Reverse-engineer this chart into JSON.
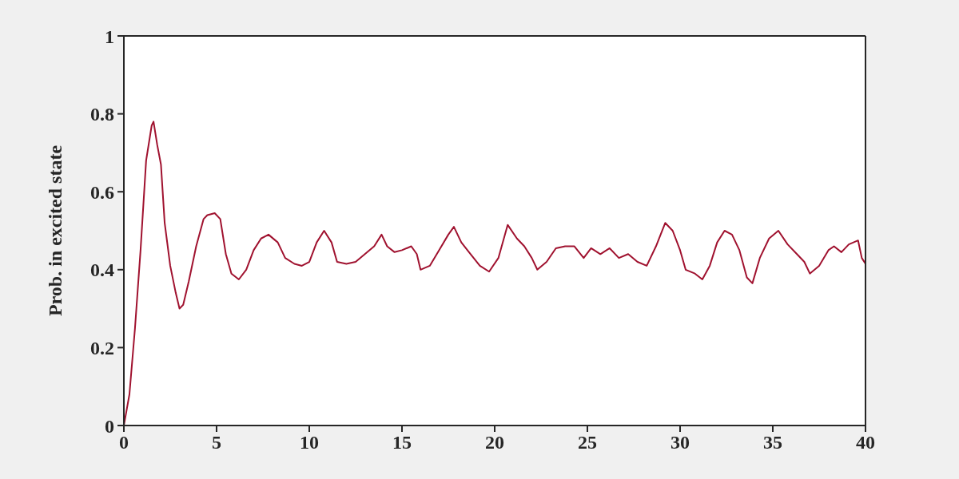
{
  "chart_data": {
    "type": "line",
    "ylabel": "Prob. in excited state",
    "xlim": [
      0,
      40
    ],
    "xticks": [
      0,
      5,
      10,
      15,
      20,
      25,
      30,
      35,
      40
    ],
    "ylim": [
      0,
      1
    ],
    "yticks": [
      0,
      0.2,
      0.4,
      0.6,
      0.8,
      1
    ],
    "grid": false,
    "legend": false,
    "marker": "none",
    "line_style": "solid",
    "series": [
      {
        "color": "#a0122f",
        "x": [
          0,
          0.3,
          0.6,
          0.9,
          1.2,
          1.5,
          1.6,
          1.8,
          2.0,
          2.2,
          2.5,
          2.8,
          3.0,
          3.2,
          3.5,
          3.9,
          4.3,
          4.5,
          4.9,
          5.2,
          5.5,
          5.8,
          6.2,
          6.6,
          7.0,
          7.4,
          7.8,
          8.3,
          8.7,
          9.2,
          9.6,
          10.0,
          10.4,
          10.8,
          11.2,
          11.5,
          12,
          12.5,
          13,
          13.5,
          13.9,
          14.2,
          14.6,
          15,
          15.5,
          15.8,
          16,
          16.5,
          17,
          17.5,
          17.8,
          18.2,
          18.7,
          19.2,
          19.7,
          20.2,
          20.7,
          21.2,
          21.6,
          22.0,
          22.3,
          22.8,
          23.3,
          23.8,
          24.3,
          24.8,
          25.2,
          25.7,
          26.2,
          26.7,
          27.2,
          27.7,
          28.2,
          28.7,
          29.2,
          29.6,
          30.0,
          30.3,
          30.8,
          31.2,
          31.6,
          32.0,
          32.4,
          32.8,
          33.2,
          33.6,
          33.9,
          34.3,
          34.8,
          35.3,
          35.8,
          36.3,
          36.7,
          37.0,
          37.5,
          38.0,
          38.3,
          38.7,
          39.1,
          39.6,
          39.8,
          40
        ],
        "values": [
          0,
          0.08,
          0.25,
          0.45,
          0.68,
          0.77,
          0.78,
          0.72,
          0.67,
          0.52,
          0.41,
          0.34,
          0.3,
          0.31,
          0.37,
          0.46,
          0.53,
          0.54,
          0.545,
          0.53,
          0.44,
          0.39,
          0.375,
          0.4,
          0.45,
          0.48,
          0.49,
          0.47,
          0.43,
          0.415,
          0.41,
          0.42,
          0.47,
          0.5,
          0.47,
          0.42,
          0.415,
          0.42,
          0.44,
          0.46,
          0.49,
          0.46,
          0.445,
          0.45,
          0.46,
          0.44,
          0.4,
          0.41,
          0.45,
          0.49,
          0.51,
          0.47,
          0.44,
          0.41,
          0.395,
          0.43,
          0.515,
          0.48,
          0.46,
          0.43,
          0.4,
          0.42,
          0.455,
          0.46,
          0.46,
          0.43,
          0.455,
          0.44,
          0.455,
          0.43,
          0.44,
          0.42,
          0.41,
          0.46,
          0.52,
          0.5,
          0.45,
          0.4,
          0.39,
          0.375,
          0.41,
          0.47,
          0.5,
          0.49,
          0.45,
          0.38,
          0.365,
          0.43,
          0.48,
          0.5,
          0.465,
          0.44,
          0.42,
          0.39,
          0.41,
          0.45,
          0.46,
          0.445,
          0.465,
          0.475,
          0.43,
          0.415
        ]
      }
    ]
  }
}
